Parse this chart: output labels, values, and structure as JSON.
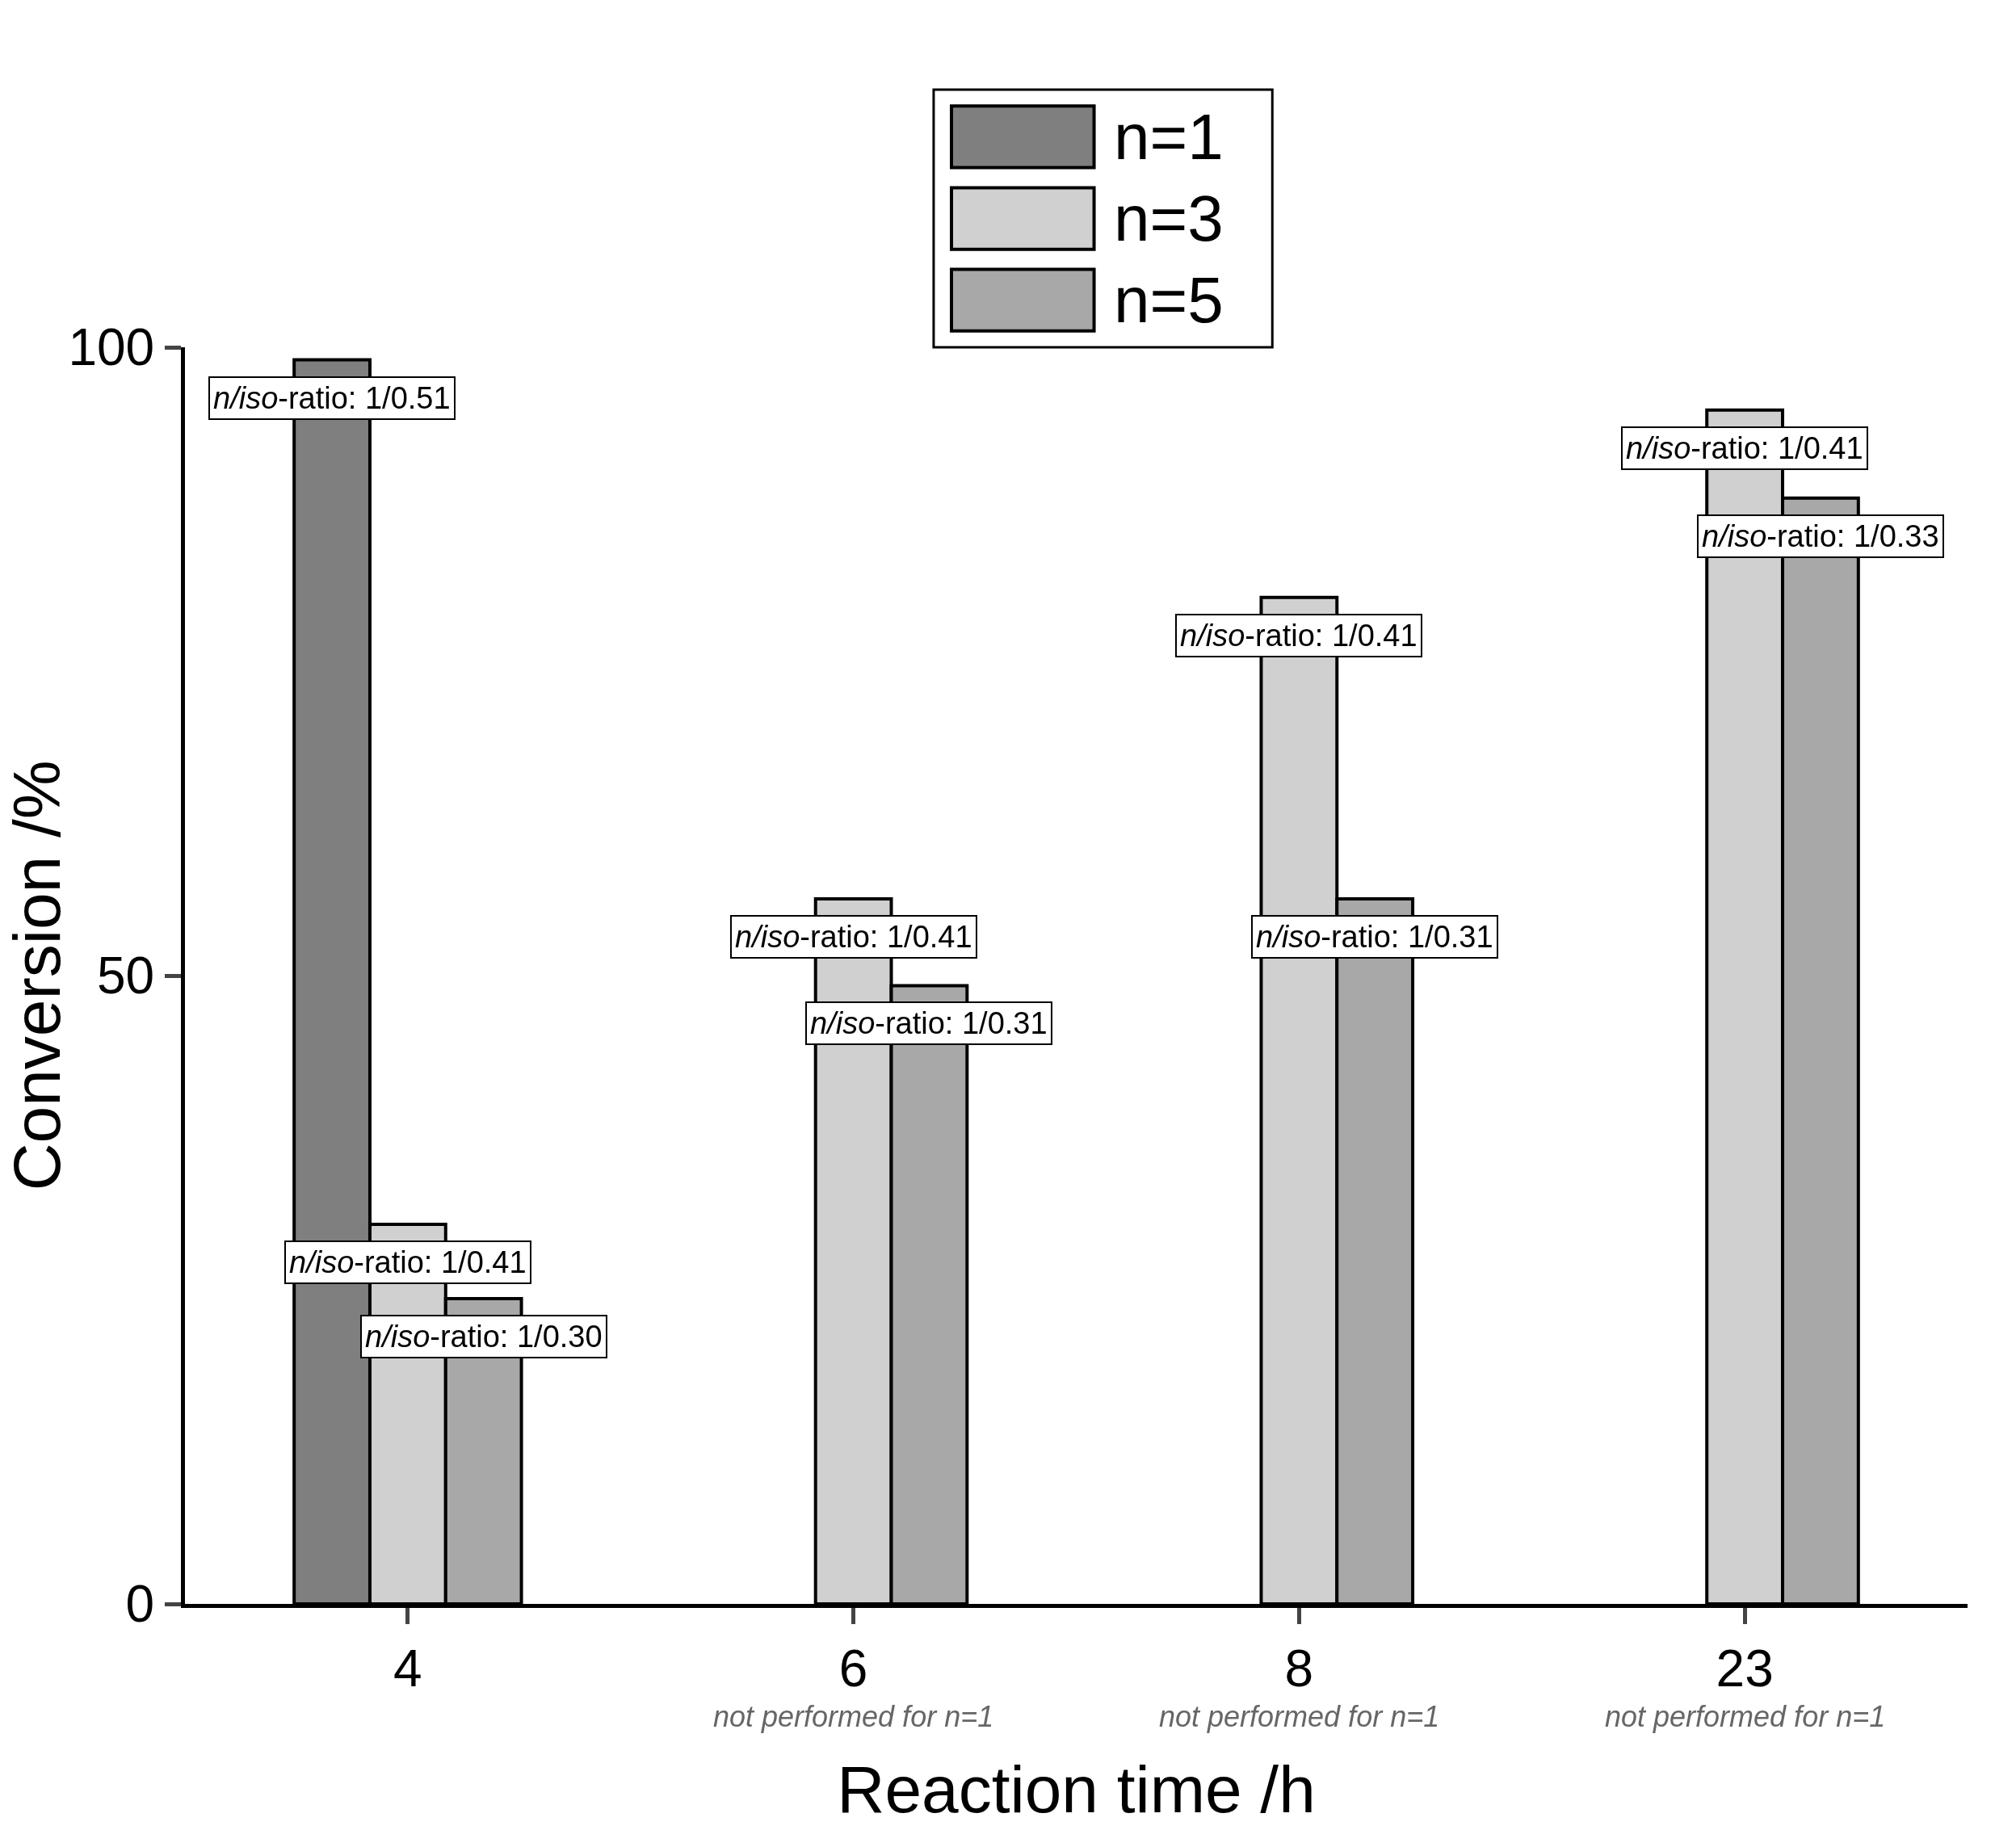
{
  "chart_data": {
    "type": "bar",
    "xlabel": "Reaction time /h",
    "ylabel": "Conversion /%",
    "categories": [
      "4",
      "6",
      "8",
      "23"
    ],
    "series": [
      {
        "name": "n=1",
        "color": "#7f7f7f",
        "values": [
          99.0,
          null,
          null,
          null
        ]
      },
      {
        "name": "n=3",
        "color": "#d0d0d0",
        "values": [
          30.2,
          56.1,
          80.1,
          95.0
        ]
      },
      {
        "name": "n=5",
        "color": "#a8a8a8",
        "values": [
          24.3,
          49.2,
          56.1,
          88.0
        ]
      }
    ],
    "ylim": [
      0,
      100
    ],
    "yticks": [
      0,
      50,
      100
    ],
    "legend": "top",
    "annotations": [
      "n/iso-ratio: 1/0.51",
      {
        "text": "n/iso-ratio: 1/0.41",
        "x": "4",
        "y": 30.2
      },
      "n/iso-ratio: 1/0.30",
      {
        "text": "n/iso-ratio: 1/0.41",
        "x": "6",
        "y": 56.1
      },
      "n/iso-ratio: 1/0.31",
      {
        "text": "n/iso-ratio: 1/0.41",
        "x": "8",
        "y": 80.1
      },
      "n/iso-ratio: 1/0.31",
      {
        "text": "n/iso-ratio: 1/0.41",
        "x": "23",
        "y": 95.0
      },
      "n/iso-ratio: 1/0.33",
      "not performed for n=1",
      "not performed for n=1",
      "not performed for n=1"
    ]
  }
}
